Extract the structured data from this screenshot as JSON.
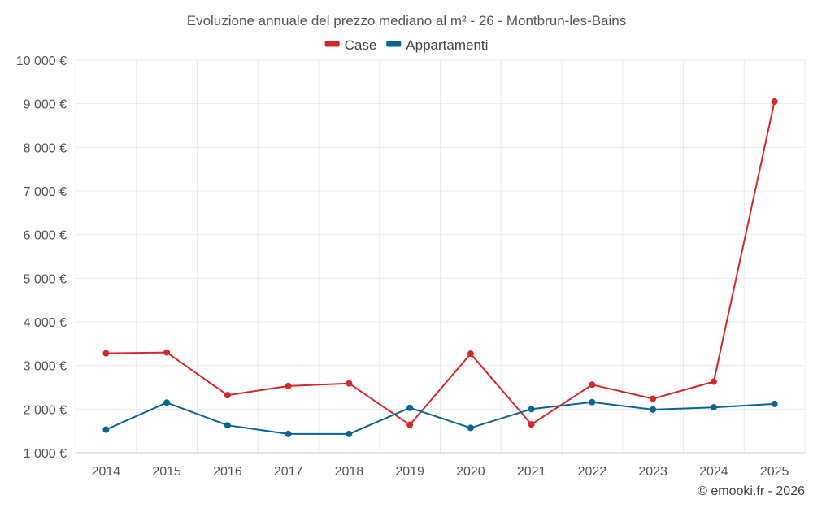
{
  "chart_data": {
    "type": "line",
    "title": "Evoluzione annuale del prezzo mediano al m² - 26 - Montbrun-les-Bains",
    "categories": [
      "2014",
      "2015",
      "2016",
      "2017",
      "2018",
      "2019",
      "2020",
      "2021",
      "2022",
      "2023",
      "2024",
      "2025"
    ],
    "series": [
      {
        "name": "Case",
        "color": "#d62728",
        "values": [
          3280,
          3300,
          2320,
          2530,
          2590,
          1640,
          3270,
          1650,
          2560,
          2240,
          2630,
          9050
        ]
      },
      {
        "name": "Appartamenti",
        "color": "#0b6396",
        "values": [
          1530,
          2150,
          1630,
          1430,
          1430,
          2030,
          1570,
          2000,
          2160,
          1990,
          2040,
          2120
        ]
      }
    ],
    "ylim": [
      1000,
      10000
    ],
    "yticks": [
      1000,
      2000,
      3000,
      4000,
      5000,
      6000,
      7000,
      8000,
      9000,
      10000
    ],
    "ytick_labels": [
      "1 000 €",
      "2 000 €",
      "3 000 €",
      "4 000 €",
      "5 000 €",
      "6 000 €",
      "7 000 €",
      "8 000 €",
      "9 000 €",
      "10 000 €"
    ],
    "xlabel": "",
    "ylabel": "",
    "legend_position": "top-center",
    "grid": true
  },
  "credit": "© emooki.fr - 2026"
}
